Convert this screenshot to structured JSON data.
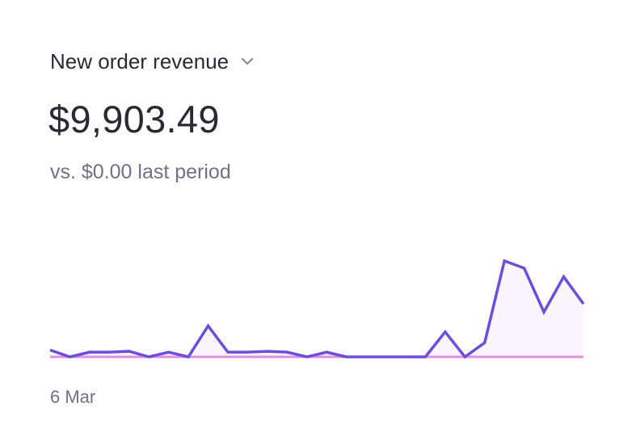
{
  "widget": {
    "metric_label": "New order revenue",
    "value": "$9,903.49",
    "comparison": "vs. $0.00 last period",
    "icons": {
      "dropdown": "chevron-down-icon"
    }
  },
  "colors": {
    "current_line": "#6b4fd8",
    "current_fill": "#f8f5fd",
    "previous_line": "#e38fe6",
    "text_primary": "#2a2a33",
    "text_secondary": "#727085"
  },
  "chart_data": {
    "type": "area",
    "x_tick_labels": [
      "6 Mar"
    ],
    "ylim": [
      0,
      1800
    ],
    "series": [
      {
        "values": [
          80,
          0,
          55,
          55,
          65,
          0,
          55,
          0,
          360,
          55,
          55,
          65,
          55,
          0,
          55,
          0,
          0,
          0,
          0,
          0,
          290,
          0,
          165,
          1115,
          1030,
          520,
          930,
          615
        ]
      },
      {
        "values": [
          0,
          0,
          0,
          0,
          0,
          0,
          0,
          0,
          0,
          0,
          0,
          0,
          0,
          0,
          0,
          0,
          0,
          0,
          0,
          0,
          0,
          0,
          0,
          0,
          0,
          0,
          0,
          0
        ]
      }
    ]
  }
}
